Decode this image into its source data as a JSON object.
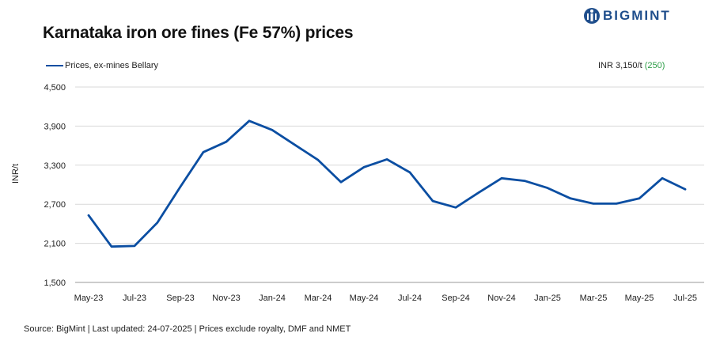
{
  "header": {
    "title": "Karnataka iron ore fines (Fe 57%) prices",
    "brand": "BIGMINT"
  },
  "price_note": {
    "prefix": "INR 3,150/t",
    "change": "(250)",
    "change_color": "#2e9e48"
  },
  "source": "Source: BigMint | Last updated: 24-07-2025 | Prices exclude royalty, DMF and NMET",
  "chart_data": {
    "type": "line",
    "ylabel": "INR/t",
    "ylim": [
      1500,
      4500
    ],
    "yticks": [
      1500,
      2100,
      2700,
      3300,
      3900,
      4500
    ],
    "ytick_labels": [
      "1,500",
      "2,100",
      "2,700",
      "3,300",
      "3,900",
      "4,500"
    ],
    "x": [
      "May-23",
      "Jun-23",
      "Jul-23",
      "Aug-23",
      "Sep-23",
      "Oct-23",
      "Nov-23",
      "Dec-23",
      "Jan-24",
      "Feb-24",
      "Mar-24",
      "Apr-24",
      "May-24",
      "Jun-24",
      "Jul-24",
      "Aug-24",
      "Sep-24",
      "Oct-24",
      "Nov-24",
      "Dec-24",
      "Jan-25",
      "Feb-25",
      "Mar-25",
      "Apr-25",
      "May-25",
      "Jun-25",
      "Jul-25"
    ],
    "xtick_labels": [
      "May-23",
      "Jul-23",
      "Sep-23",
      "Nov-23",
      "Jan-24",
      "Mar-24",
      "May-24",
      "Jul-24",
      "Sep-24",
      "Nov-24",
      "Jan-25",
      "Mar-25",
      "May-25",
      "Jul-25"
    ],
    "grid": true,
    "legend_position": "top-left",
    "series": [
      {
        "name": "Prices, ex-mines Bellary",
        "color": "#0b4ea2",
        "values": [
          2530,
          2050,
          2060,
          2420,
          2970,
          3500,
          3660,
          3980,
          3840,
          3610,
          3380,
          3040,
          3270,
          3390,
          3190,
          2750,
          2650,
          2880,
          3100,
          3060,
          2950,
          2790,
          2710,
          2710,
          2790,
          3100,
          2930
        ]
      }
    ]
  },
  "colors": {
    "brand": "#1f4e8c",
    "line": "#0b4ea2",
    "grid": "#d9d9d9"
  }
}
